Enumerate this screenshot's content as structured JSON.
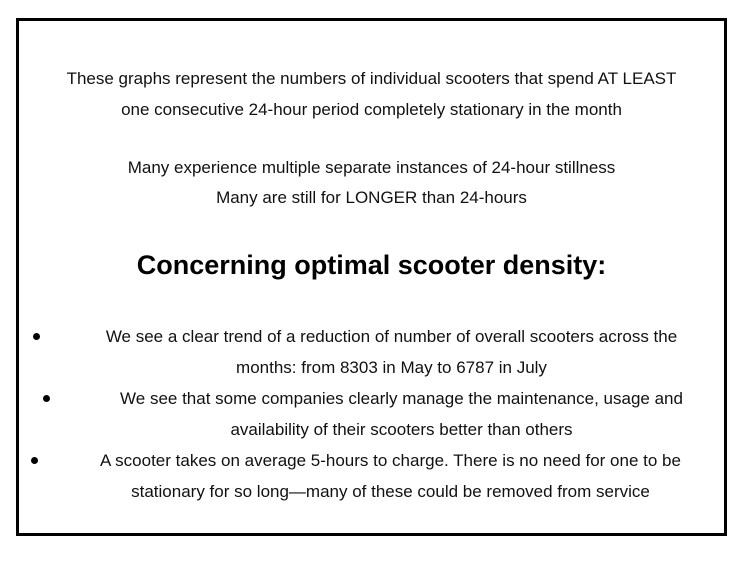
{
  "intro": {
    "line1": "These graphs represent the numbers of individual scooters that spend AT LEAST",
    "line2": "one consecutive 24-hour period completely stationary in the month"
  },
  "notes": {
    "line1": "Many experience multiple separate instances of 24-hour stillness",
    "line2": "Many are still for LONGER than 24-hours"
  },
  "heading": "Concerning optimal scooter density:",
  "bullets": [
    {
      "line1": "We see a clear trend of a reduction of number of overall scooters across the",
      "line2": "months: from 8303 in May to 6787 in July"
    },
    {
      "line1": "We see that some companies clearly manage the maintenance, usage and",
      "line2": "availability of their scooters better than others"
    },
    {
      "line1": "A scooter takes on average 5-hours to charge.  There is no need for one to be",
      "line2": "stationary for so long—many of these could be removed from service"
    }
  ]
}
